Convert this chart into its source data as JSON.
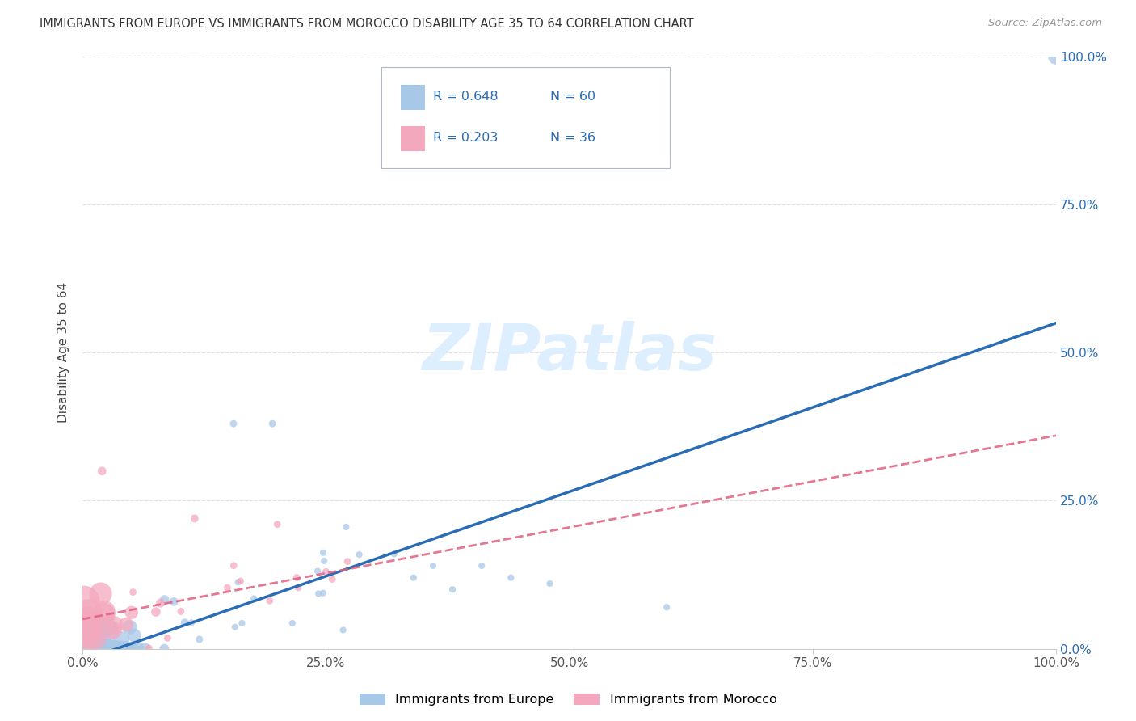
{
  "title": "IMMIGRANTS FROM EUROPE VS IMMIGRANTS FROM MOROCCO DISABILITY AGE 35 TO 64 CORRELATION CHART",
  "source": "Source: ZipAtlas.com",
  "ylabel": "Disability Age 35 to 64",
  "xlim": [
    0,
    1.0
  ],
  "ylim": [
    0,
    1.0
  ],
  "xticks": [
    0.0,
    0.25,
    0.5,
    0.75,
    1.0
  ],
  "yticks": [
    0.0,
    0.25,
    0.5,
    0.75,
    1.0
  ],
  "xticklabels": [
    "0.0%",
    "25.0%",
    "50.0%",
    "75.0%",
    "100.0%"
  ],
  "yticklabels": [
    "0.0%",
    "25.0%",
    "50.0%",
    "75.0%",
    "100.0%"
  ],
  "legend_europe": "Immigrants from Europe",
  "legend_morocco": "Immigrants from Morocco",
  "R_europe": 0.648,
  "N_europe": 60,
  "R_morocco": 0.203,
  "N_morocco": 36,
  "europe_color": "#a8c8e8",
  "europe_line_color": "#2a6db5",
  "morocco_color": "#f4a8be",
  "morocco_line_color": "#e06080",
  "background_color": "#ffffff",
  "watermark_color": "#ddeeff",
  "grid_color": "#cccccc",
  "eu_line_x0": 0.0,
  "eu_line_y0": -0.02,
  "eu_line_x1": 1.0,
  "eu_line_y1": 0.55,
  "mo_line_x0": 0.0,
  "mo_line_y0": 0.05,
  "mo_line_x1": 1.0,
  "mo_line_y1": 0.36
}
